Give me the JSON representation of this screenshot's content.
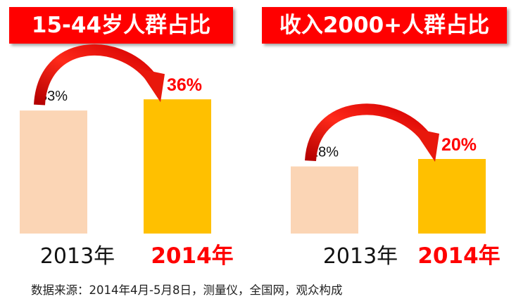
{
  "colors": {
    "title_bg": "#ff0000",
    "bar_2013": "#fbd5b5",
    "bar_2014": "#ffc000",
    "highlight": "#ff0000",
    "arrow": "#e8180c"
  },
  "chart_data": [
    {
      "type": "bar",
      "title": "15-44岁人群占比",
      "categories": [
        "2013年",
        "2014年"
      ],
      "values": [
        33,
        36
      ],
      "value_labels": [
        "33%",
        "36%"
      ],
      "unit": "%"
    },
    {
      "type": "bar",
      "title": "收入2000+人群占比",
      "categories": [
        "2013年",
        "2014年"
      ],
      "values": [
        18,
        20
      ],
      "value_labels": [
        "18%",
        "20%"
      ],
      "unit": "%"
    }
  ],
  "source_note": "数据来源：2014年4月-5月8日，测量仪，全国网，观众构成"
}
